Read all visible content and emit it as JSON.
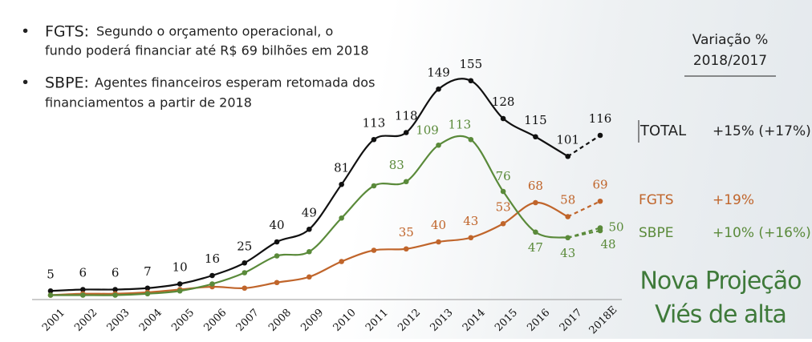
{
  "bullets": [
    {
      "label": "FGTS:",
      "lines": [
        "Segundo o orçamento operacional, o",
        "fundo poderá financiar até R$ 69 bilhões em 2018"
      ]
    },
    {
      "label": "SBPE:",
      "lines": [
        "Agentes financeiros esperam retomada dos",
        "financiamentos a partir de 2018"
      ]
    }
  ],
  "table": {
    "header": [
      "Variação %",
      "2018/2017"
    ],
    "rows": [
      [
        "TOTAL",
        "+15% (+17%)"
      ],
      [
        "FGTS",
        "+19%"
      ],
      [
        "SBPE",
        "+10% (+16%)"
      ]
    ]
  },
  "projection": [
    "Nova Projeção",
    "Viés de alta"
  ],
  "chart_data": {
    "type": "line",
    "categories": [
      "2001",
      "2002",
      "2003",
      "2004",
      "2005",
      "2006",
      "2007",
      "2008",
      "2009",
      "2010",
      "2011",
      "2012",
      "2013",
      "2014",
      "2015",
      "2016",
      "2017",
      "2018E"
    ],
    "ylim": [
      0,
      160
    ],
    "series": [
      {
        "name": "TOTAL",
        "color": "#111111",
        "values": [
          5,
          6,
          6,
          7,
          10,
          16,
          25,
          40,
          49,
          81,
          113,
          118,
          149,
          155,
          128,
          115,
          101,
          116
        ]
      },
      {
        "name": "FGTS",
        "color": "#c0652b",
        "values": [
          2,
          3,
          3,
          4,
          6,
          8,
          7,
          11,
          15,
          26,
          34,
          35,
          40,
          43,
          53,
          68,
          58,
          69
        ],
        "value_labels": [
          null,
          null,
          null,
          null,
          null,
          null,
          null,
          null,
          null,
          null,
          null,
          "35",
          "40",
          "43",
          "53",
          "68",
          "58",
          "69"
        ]
      },
      {
        "name": "SBPE",
        "color": "#5a8a3a",
        "values": [
          2,
          2,
          2,
          3,
          5,
          10,
          18,
          30,
          33,
          57,
          80,
          83,
          109,
          113,
          76,
          47,
          43,
          48
        ],
        "value_labels": [
          null,
          null,
          null,
          null,
          null,
          null,
          null,
          null,
          null,
          null,
          null,
          "83",
          "109",
          "113",
          "76",
          "47",
          "43",
          "48"
        ]
      },
      {
        "color": "#5a8a3a",
        "values": [
          null,
          null,
          null,
          null,
          null,
          null,
          null,
          null,
          null,
          null,
          null,
          null,
          null,
          null,
          null,
          null,
          43,
          50
        ],
        "value_labels": [
          null,
          null,
          null,
          null,
          null,
          null,
          null,
          null,
          null,
          null,
          null,
          null,
          null,
          null,
          null,
          null,
          null,
          "50"
        ]
      }
    ]
  }
}
